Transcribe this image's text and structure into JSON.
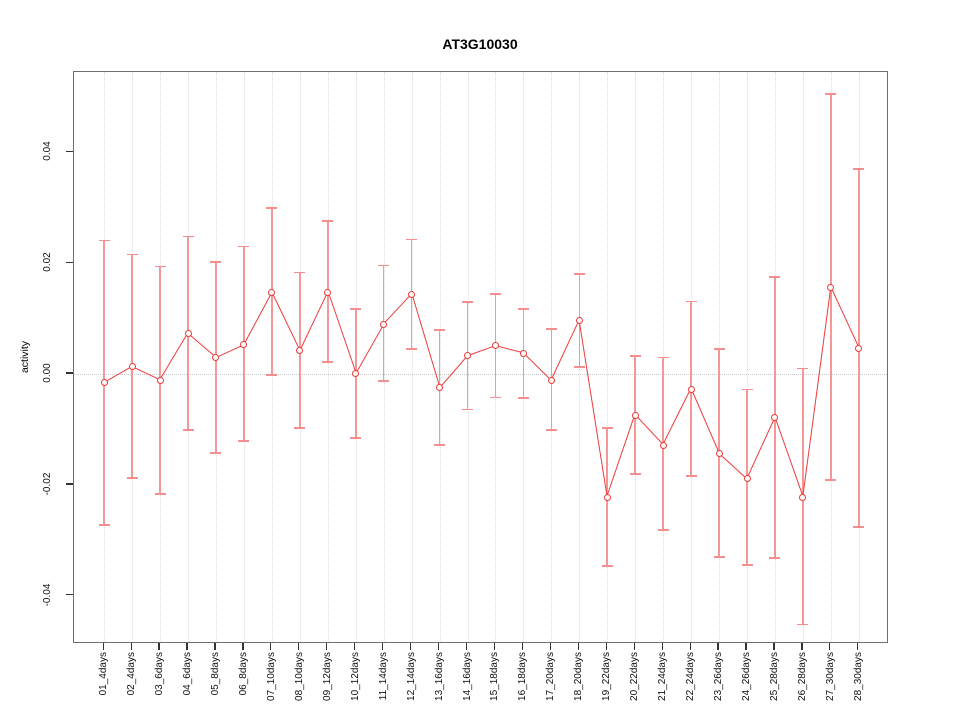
{
  "figure": {
    "title": "AT3G10030",
    "ylabel": "activity"
  },
  "chart_data": {
    "type": "line",
    "subtype": "points-with-error-bars",
    "title": "AT3G10030",
    "xlabel": "",
    "ylabel": "activity",
    "categories": [
      "01_4days",
      "02_4days",
      "03_6days",
      "04_6days",
      "05_8days",
      "06_8days",
      "07_10days",
      "08_10days",
      "09_12days",
      "10_12days",
      "11_14days",
      "12_14days",
      "13_16days",
      "14_16days",
      "15_18days",
      "16_18days",
      "17_20days",
      "18_20days",
      "19_22days",
      "20_22days",
      "21_24days",
      "22_24days",
      "23_26days",
      "24_26days",
      "25_28days",
      "26_28days",
      "27_30days",
      "28_30days"
    ],
    "series": [
      {
        "name": "activity",
        "values": [
          -0.0016,
          0.0013,
          -0.0011,
          0.0073,
          0.003,
          0.0053,
          0.0147,
          0.0042,
          0.0148,
          0.0001,
          0.009,
          0.0144,
          -0.0025,
          0.0033,
          0.0051,
          0.0038,
          -0.0012,
          0.0096,
          -0.0222,
          -0.0074,
          -0.0128,
          -0.0027,
          -0.0143,
          -0.0189,
          -0.0079,
          -0.0222,
          0.0156,
          0.0047
        ],
        "upper": [
          0.0241,
          0.0216,
          0.0194,
          0.0248,
          0.0202,
          0.023,
          0.0299,
          0.0183,
          0.0276,
          0.0118,
          0.0196,
          0.0243,
          0.008,
          0.013,
          0.0144,
          0.0118,
          0.0081,
          0.0181,
          -0.0097,
          0.0033,
          0.003,
          0.0131,
          0.0045,
          -0.0028,
          0.0175,
          0.001,
          0.0505,
          0.037
        ],
        "lower": [
          -0.0272,
          -0.0188,
          -0.0216,
          -0.0101,
          -0.0143,
          -0.0121,
          -0.0002,
          -0.0097,
          0.0022,
          -0.0115,
          -0.0013,
          0.0045,
          -0.0128,
          -0.0064,
          -0.0042,
          -0.0043,
          -0.0101,
          0.0013,
          -0.0346,
          -0.018,
          -0.0281,
          -0.0184,
          -0.033,
          -0.0345,
          -0.0332,
          -0.0452,
          -0.0191,
          -0.0276
        ]
      }
    ],
    "ylim": [
      -0.0487,
      0.0545
    ],
    "yticks": [
      -0.04,
      -0.02,
      0.0,
      0.02,
      0.04
    ],
    "ytick_labels": [
      "-0.04",
      "-0.02",
      "0.00",
      "0.02",
      "0.04"
    ],
    "grid": "vertical dotted line at each category; dotted horizontal line at y=0",
    "legend": "none",
    "colors": {
      "line": "#ee3b3b",
      "marker": "#ee3b3b",
      "error_bar": "#f59797",
      "grid": "#dcdcdc",
      "zero_line": "#c9c9c9",
      "box": "#6e6e6e",
      "tick": "#333333",
      "text": "#000000"
    }
  }
}
